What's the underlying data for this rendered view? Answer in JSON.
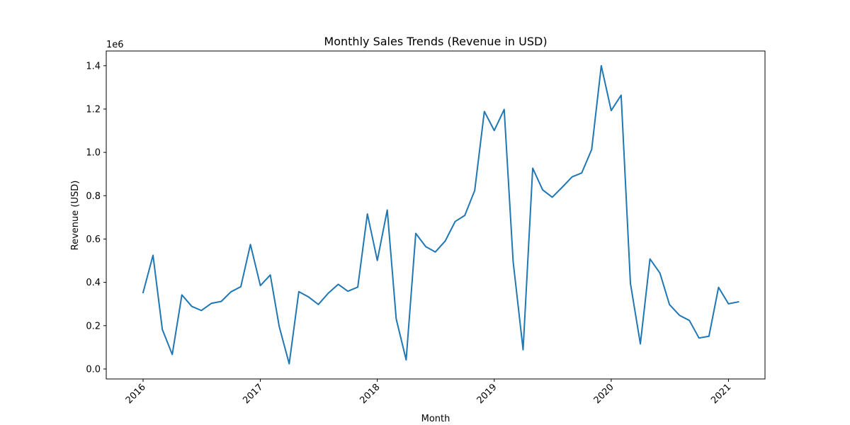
{
  "chart_data": {
    "type": "line",
    "title": "Monthly Sales Trends (Revenue in USD)",
    "xlabel": "Month",
    "ylabel": "Revenue (USD)",
    "y_offset_label": "1e6",
    "ylim": [
      -0.046,
      1.468
    ],
    "xlim": [
      "2015-09-08",
      "2021-04-25"
    ],
    "x_ticks": [
      "2016",
      "2017",
      "2018",
      "2019",
      "2020",
      "2021"
    ],
    "y_ticks": [
      "0.0",
      "0.2",
      "0.4",
      "0.6",
      "0.8",
      "1.0",
      "1.2",
      "1.4"
    ],
    "y_tick_values": [
      0.0,
      0.2,
      0.4,
      0.6,
      0.8,
      1.0,
      1.2,
      1.4
    ],
    "grid": false,
    "series": [
      {
        "color": "#1f77b4",
        "x": [
          "2016-01",
          "2016-02",
          "2016-03",
          "2016-04",
          "2016-05",
          "2016-06",
          "2016-07",
          "2016-08",
          "2016-09",
          "2016-10",
          "2016-11",
          "2016-12",
          "2017-01",
          "2017-02",
          "2017-03",
          "2017-04",
          "2017-05",
          "2017-06",
          "2017-07",
          "2017-08",
          "2017-09",
          "2017-10",
          "2017-11",
          "2017-12",
          "2018-01",
          "2018-02",
          "2018-03",
          "2018-04",
          "2018-05",
          "2018-06",
          "2018-07",
          "2018-08",
          "2018-09",
          "2018-10",
          "2018-11",
          "2018-12",
          "2019-01",
          "2019-02",
          "2019-03",
          "2019-04",
          "2019-05",
          "2019-06",
          "2019-07",
          "2019-08",
          "2019-09",
          "2019-10",
          "2019-11",
          "2019-12",
          "2020-01",
          "2020-02",
          "2020-03",
          "2020-04",
          "2020-05",
          "2020-06",
          "2020-07",
          "2020-08",
          "2020-09",
          "2020-10",
          "2020-11",
          "2020-12",
          "2021-01",
          "2021-02"
        ],
        "values": [
          0.353,
          0.525,
          0.183,
          0.067,
          0.342,
          0.289,
          0.27,
          0.303,
          0.312,
          0.356,
          0.38,
          0.575,
          0.385,
          0.434,
          0.195,
          0.024,
          0.357,
          0.332,
          0.298,
          0.35,
          0.391,
          0.359,
          0.378,
          0.716,
          0.501,
          0.734,
          0.231,
          0.042,
          0.626,
          0.565,
          0.54,
          0.591,
          0.681,
          0.709,
          0.824,
          1.189,
          1.101,
          1.198,
          0.495,
          0.089,
          0.927,
          0.827,
          0.793,
          0.839,
          0.887,
          0.905,
          1.013,
          1.4,
          1.193,
          1.264,
          0.395,
          0.116,
          0.508,
          0.443,
          0.297,
          0.248,
          0.224,
          0.143,
          0.151,
          0.377,
          0.301,
          0.31
        ]
      }
    ]
  }
}
